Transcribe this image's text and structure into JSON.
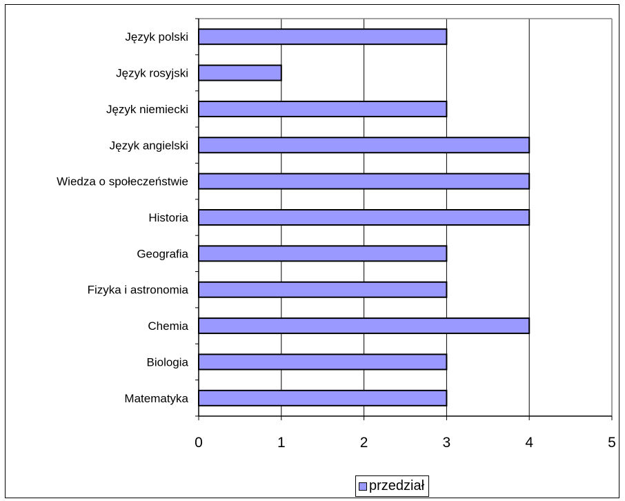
{
  "chart_data": {
    "type": "bar",
    "orientation": "horizontal",
    "categories": [
      "Język polski",
      "Język rosyjski",
      "Język niemiecki",
      "Język angielski",
      "Wiedza o społeczeństwie",
      "Historia",
      "Geografia",
      "Fizyka i astronomia",
      "Chemia",
      "Biologia",
      "Matematyka"
    ],
    "series": [
      {
        "name": "przedział",
        "values": [
          3,
          1,
          3,
          4,
          4,
          4,
          3,
          3,
          4,
          3,
          3
        ]
      }
    ],
    "x_ticks": [
      "0",
      "1",
      "2",
      "3",
      "4",
      "5"
    ],
    "xlim": [
      0,
      5
    ],
    "grid": "vertical major gridlines",
    "legend": "bottom",
    "bar_color": "#9999ff",
    "bar_outline": "#000000"
  }
}
